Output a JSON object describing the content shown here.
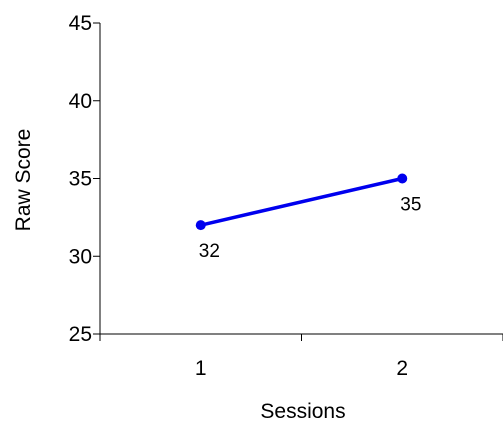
{
  "chart_data": {
    "type": "line",
    "title": "",
    "xlabel": "Sessions",
    "ylabel": "Raw Score",
    "categories": [
      "1",
      "2"
    ],
    "series": [
      {
        "values": [
          32,
          35
        ],
        "color": "#0000ee"
      }
    ],
    "data_labels": [
      "32",
      "35"
    ],
    "ylim": [
      25,
      45
    ],
    "yticks": [
      25,
      30,
      35,
      40,
      45
    ],
    "ytick_labels": [
      "25",
      "30",
      "35",
      "40",
      "45"
    ],
    "grid": false,
    "legend": "none"
  }
}
